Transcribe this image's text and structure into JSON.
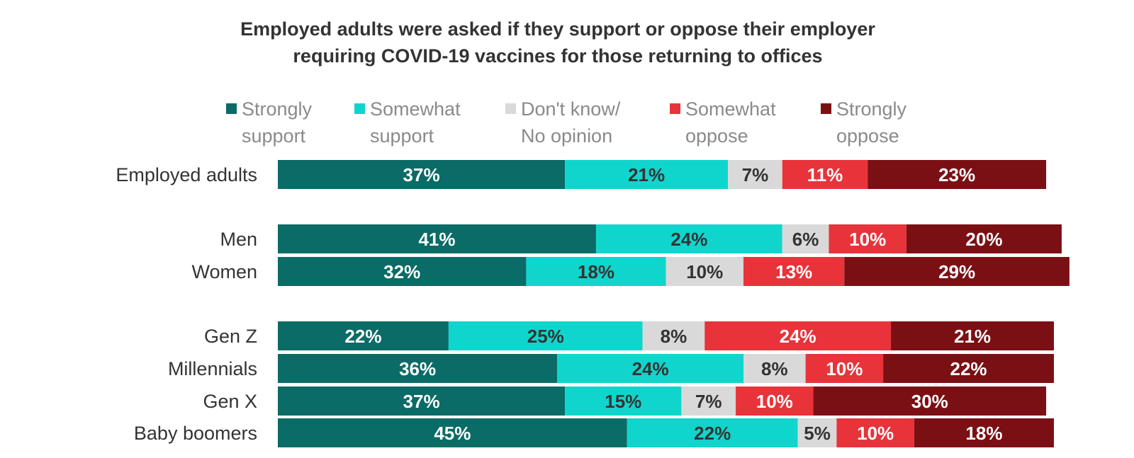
{
  "chart_data": {
    "type": "bar",
    "orientation": "horizontal",
    "stacked": true,
    "title": [
      "Employed adults were asked if they support or oppose their employer",
      "requiring COVID-19 vaccines for those returning to offices"
    ],
    "legend_position": "top",
    "categories": [
      "Employed adults",
      "Men",
      "Women",
      "Gen Z",
      "Millennials",
      "Gen X",
      "Baby boomers"
    ],
    "groups": [
      [
        "Employed adults"
      ],
      [
        "Men",
        "Women"
      ],
      [
        "Gen Z",
        "Millennials",
        "Gen X",
        "Baby boomers"
      ]
    ],
    "xlim": [
      0,
      100
    ],
    "series": [
      {
        "name": [
          "Strongly",
          "support"
        ],
        "color": "#0b6b66",
        "label_color": "#ffffff",
        "values": [
          37,
          41,
          32,
          22,
          36,
          37,
          45
        ]
      },
      {
        "name": [
          "Somewhat",
          "support"
        ],
        "color": "#10d5cc",
        "label_color": "#333333",
        "values": [
          21,
          24,
          18,
          25,
          24,
          15,
          22
        ]
      },
      {
        "name": [
          "Don't know/",
          "No opinion"
        ],
        "color": "#d9d9d9",
        "label_color": "#333333",
        "values": [
          7,
          6,
          10,
          8,
          8,
          7,
          5
        ]
      },
      {
        "name": [
          "Somewhat",
          "oppose"
        ],
        "color": "#e8333a",
        "label_color": "#ffffff",
        "values": [
          11,
          10,
          13,
          24,
          10,
          10,
          10
        ]
      },
      {
        "name": [
          "Strongly",
          "oppose"
        ],
        "color": "#7b1014",
        "label_color": "#ffffff",
        "values": [
          23,
          20,
          29,
          21,
          22,
          30,
          18
        ]
      }
    ],
    "value_suffix": "%"
  }
}
